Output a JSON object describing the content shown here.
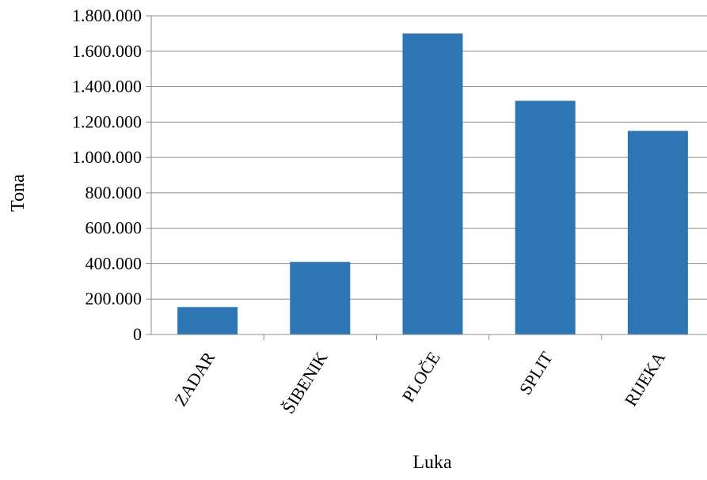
{
  "chart_data": {
    "type": "bar",
    "categories": [
      "ZADAR",
      "ŠIBENIK",
      "PLOČE",
      "SPLIT",
      "RIJEKA"
    ],
    "series": [
      {
        "values": [
          155000,
          410000,
          1700000,
          1320000,
          1150000
        ],
        "color": "#2E75B6"
      }
    ],
    "xlabel": "Luka",
    "ylabel": "Tona",
    "ylim": [
      0,
      1800000
    ],
    "yticks": [
      0,
      200000,
      400000,
      600000,
      800000,
      1000000,
      1200000,
      1400000,
      1600000,
      1800000
    ],
    "ytick_labels": [
      "0",
      "200.000",
      "400.000",
      "600.000",
      "800.000",
      "1.000.000",
      "1.200.000",
      "1.400.000",
      "1.600.000",
      "1.800.000"
    ],
    "grid": true,
    "legend": "none"
  }
}
